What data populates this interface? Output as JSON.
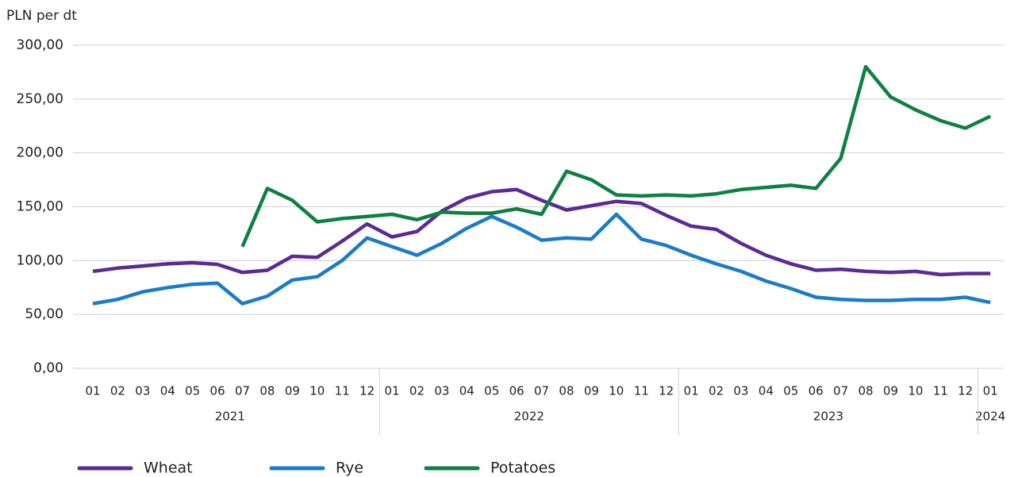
{
  "chart_data": {
    "type": "line",
    "y_axis_label": "PLN per dt",
    "groups": [
      {
        "name": "2021",
        "categories": [
          "01",
          "02",
          "03",
          "04",
          "05",
          "06",
          "07",
          "08",
          "09",
          "10",
          "11",
          "12"
        ]
      },
      {
        "name": "2022",
        "categories": [
          "01",
          "02",
          "03",
          "04",
          "05",
          "06",
          "07",
          "08",
          "09",
          "10",
          "11",
          "12"
        ]
      },
      {
        "name": "2023",
        "categories": [
          "01",
          "02",
          "03",
          "04",
          "05",
          "06",
          "07",
          "08",
          "09",
          "10",
          "11",
          "12"
        ]
      },
      {
        "name": "2024",
        "categories": [
          "01"
        ]
      }
    ],
    "series": [
      {
        "name": "Wheat",
        "color": "#5b2a96",
        "values": [
          90,
          93,
          95,
          97,
          98,
          96.5,
          89,
          91,
          104,
          103,
          118,
          134,
          122,
          127,
          146,
          158,
          164,
          166,
          156,
          147,
          151,
          155,
          153,
          142,
          132,
          129,
          116,
          105,
          97,
          91,
          92,
          90,
          89,
          90,
          87,
          88,
          88
        ]
      },
      {
        "name": "Rye",
        "color": "#1a7cc8",
        "values": [
          60,
          64,
          71,
          75,
          78,
          79,
          60,
          67,
          82,
          85,
          100,
          121,
          113,
          105,
          116,
          130,
          141,
          131,
          119,
          121,
          120,
          143,
          120,
          114,
          105,
          97,
          90,
          81,
          74,
          66,
          64,
          63,
          63,
          64,
          64,
          66,
          61
        ]
      },
      {
        "name": "Potatoes",
        "color": "#0f8040",
        "values": [
          null,
          null,
          null,
          null,
          null,
          null,
          113,
          167,
          156,
          136,
          139,
          141,
          143,
          138,
          145,
          144,
          144,
          148,
          143,
          183,
          175,
          161,
          160,
          161,
          160,
          162,
          166,
          168,
          170,
          167,
          195,
          280,
          252,
          240,
          230,
          223,
          234
        ]
      }
    ],
    "ylim": [
      0,
      300
    ],
    "yticks": [
      {
        "value": 0,
        "label": "0,00"
      },
      {
        "value": 50,
        "label": "50,00"
      },
      {
        "value": 100,
        "label": "100,00"
      },
      {
        "value": 150,
        "label": "150,00"
      },
      {
        "value": 200,
        "label": "200,00"
      },
      {
        "value": 250,
        "label": "250,00"
      },
      {
        "value": 300,
        "label": "300,00"
      }
    ],
    "grid": true,
    "legend": "bottom"
  }
}
